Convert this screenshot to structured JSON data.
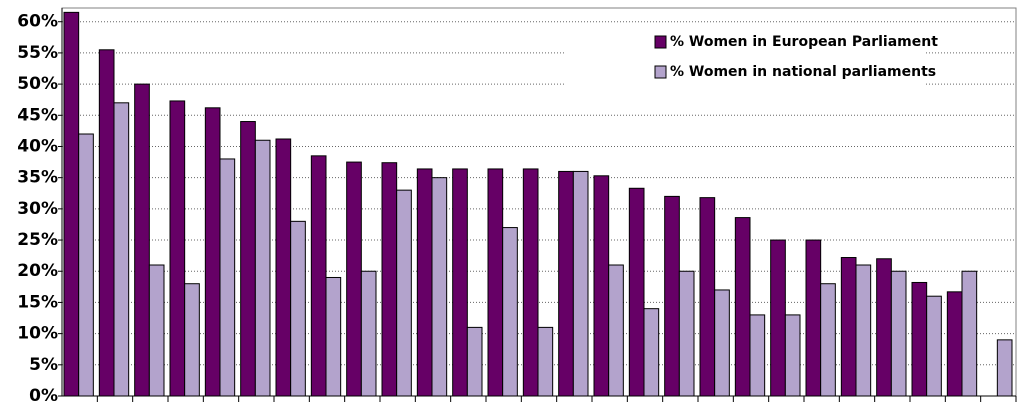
{
  "chart_data": {
    "type": "bar",
    "categories": [
      null,
      null,
      null,
      null,
      null,
      null,
      null,
      null,
      null,
      null,
      null,
      null,
      null,
      null,
      null,
      null,
      null,
      null,
      null,
      null,
      null,
      null,
      null,
      null,
      null,
      null,
      null
    ],
    "series": [
      {
        "name": "% Women in European Parliament",
        "color": "#660066",
        "values": [
          61.5,
          55.5,
          50,
          47.3,
          46.2,
          44,
          41.2,
          38.5,
          37.5,
          37.4,
          36.4,
          36.4,
          36.4,
          36.4,
          36,
          35.3,
          33.3,
          32,
          31.8,
          28.6,
          25,
          25,
          22.2,
          22,
          18.2,
          16.7,
          null
        ]
      },
      {
        "name": "% Women in national parliaments",
        "color": "#b3a3cc",
        "values": [
          42,
          47,
          21,
          18,
          38,
          41,
          28,
          19,
          20,
          33,
          35,
          11,
          27,
          11,
          36,
          21,
          14,
          20,
          17,
          13,
          13,
          18,
          21,
          20,
          16,
          20,
          9
        ]
      }
    ],
    "ylim": [
      0,
      62.2
    ],
    "yticks": [
      {
        "value": 0,
        "label": "0%"
      },
      {
        "value": 5,
        "label": "5%"
      },
      {
        "value": 10,
        "label": "10%"
      },
      {
        "value": 15,
        "label": "15%"
      },
      {
        "value": 20,
        "label": "20%"
      },
      {
        "value": 25,
        "label": "25%"
      },
      {
        "value": 30,
        "label": "30%"
      },
      {
        "value": 35,
        "label": "35%"
      },
      {
        "value": 40,
        "label": "40%"
      },
      {
        "value": 45,
        "label": "45%"
      },
      {
        "value": 50,
        "label": "50%"
      },
      {
        "value": 55,
        "label": "55%"
      },
      {
        "value": 60,
        "label": "60%"
      }
    ],
    "grid": true,
    "legend": "top-right"
  }
}
